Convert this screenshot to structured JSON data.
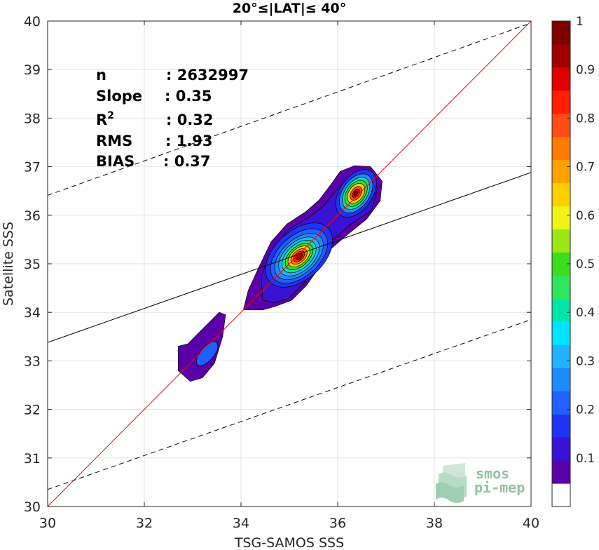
{
  "chart_data": {
    "type": "heatmap",
    "title": "20°≤|LAT|≤ 40°",
    "xlabel": "TSG-SAMOS SSS",
    "ylabel": "Satellite SSS",
    "xlim": [
      30,
      40
    ],
    "ylim": [
      30,
      40
    ],
    "xticks": [
      "30",
      "32",
      "34",
      "36",
      "38",
      "40"
    ],
    "yticks": [
      "30",
      "31",
      "32",
      "33",
      "34",
      "35",
      "36",
      "37",
      "38",
      "39",
      "40"
    ],
    "grid": true,
    "stats": [
      {
        "name": "n",
        "value": ": 2632997"
      },
      {
        "name": "Slope",
        "value": ": 0.35"
      },
      {
        "name": "R",
        "sup": "2",
        "value": ": 0.32"
      },
      {
        "name": "RMS",
        "value": ": 1.93"
      },
      {
        "name": "BIAS",
        "value": ": 0.37"
      }
    ],
    "lines": {
      "identity": {
        "x": [
          30,
          40
        ],
        "y": [
          30,
          40
        ],
        "color": "#ff0000"
      },
      "regression": {
        "x": [
          30,
          40
        ],
        "y": [
          33.38,
          36.88
        ],
        "color": "#000000"
      },
      "upper_bound": {
        "x": [
          30,
          40
        ],
        "y": [
          36.41,
          39.96
        ],
        "color": "#000000",
        "dash": true
      },
      "lower_bound": {
        "x": [
          30,
          40
        ],
        "y": [
          30.35,
          33.85
        ],
        "color": "#000000",
        "dash": true
      }
    },
    "density_peaks": [
      {
        "x": 35.15,
        "y": 35.15,
        "max": 0.93
      },
      {
        "x": 36.35,
        "y": 36.45,
        "max": 0.92
      },
      {
        "x": 33.3,
        "y": 33.1,
        "max": 0.23
      }
    ],
    "colorbar": {
      "ticks": [
        "0.1",
        "0.2",
        "0.3",
        "0.4",
        "0.5",
        "0.6",
        "0.7",
        "0.8",
        "0.9",
        "1"
      ],
      "levels": 14,
      "colors": [
        "#ffffff",
        "#5a00a8",
        "#3a12d6",
        "#1f33f2",
        "#2060ff",
        "#1e8cff",
        "#20b4ff",
        "#00e5ff",
        "#00e6a8",
        "#2ee65c",
        "#3cdc1e",
        "#9ce614",
        "#eef514",
        "#ffd000",
        "#ffa200",
        "#ff7a00",
        "#ff4d14",
        "#ff1e00",
        "#e00000",
        "#a00000",
        "#800000"
      ]
    },
    "watermark": [
      "smos",
      "pi-mep"
    ]
  }
}
